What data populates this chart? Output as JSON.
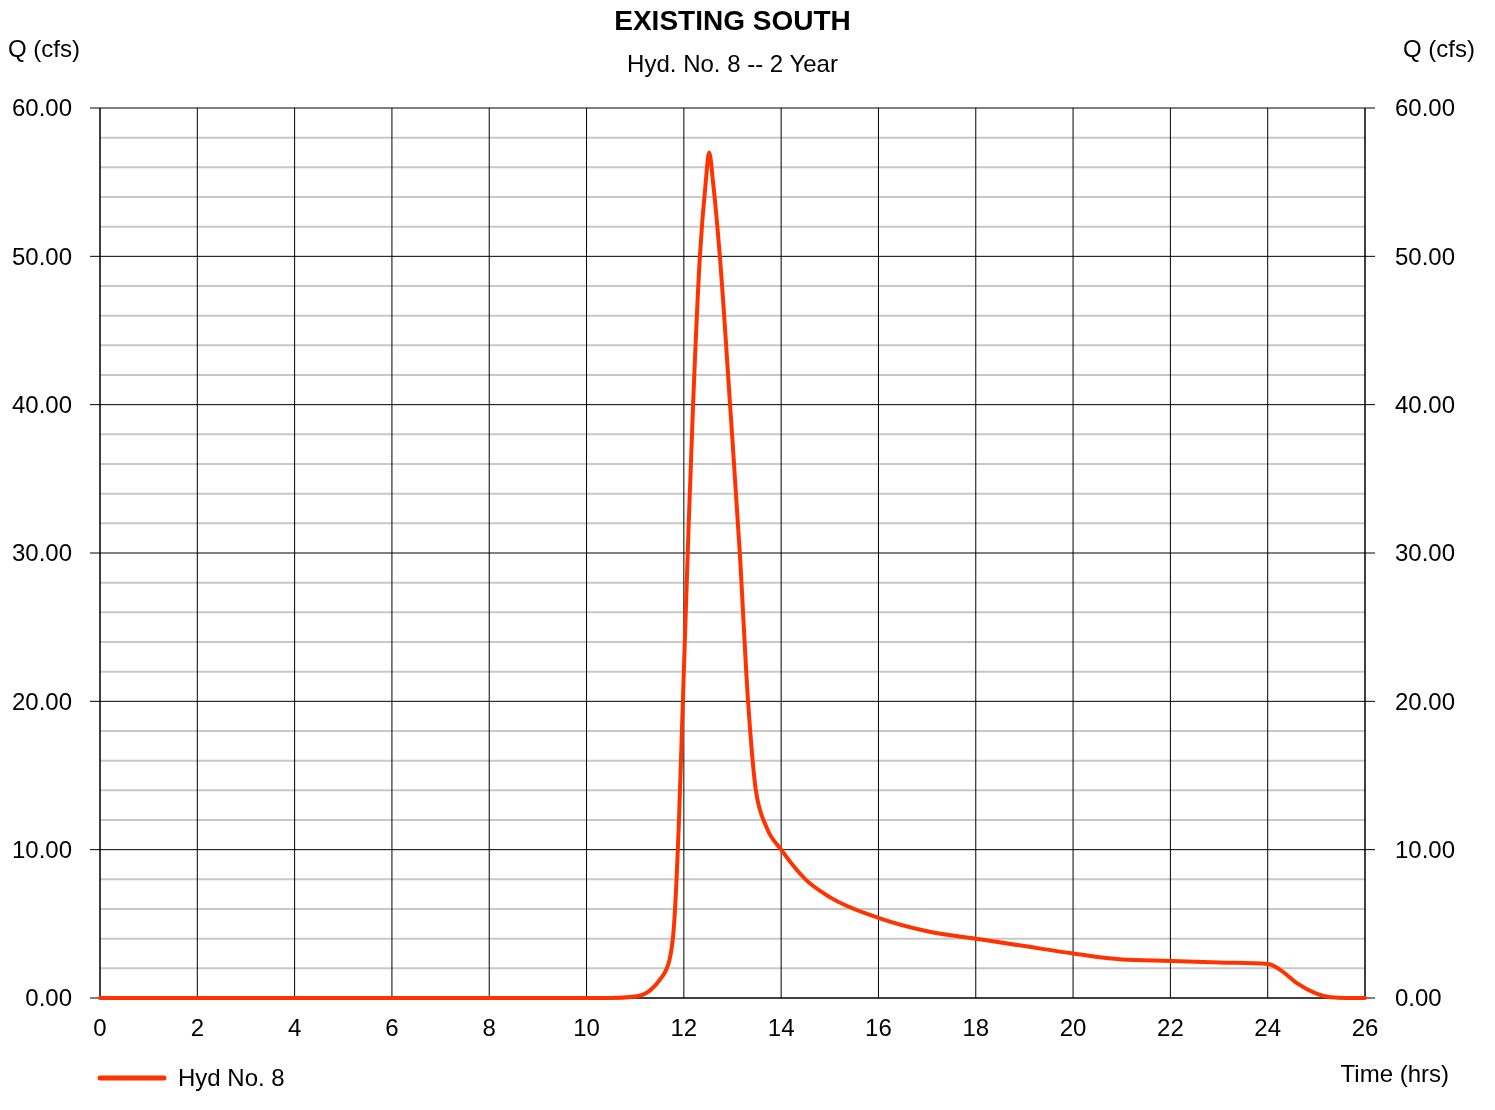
{
  "chart_data": {
    "type": "line",
    "title": "EXISTING SOUTH",
    "subtitle": "Hyd. No. 8 -- 2 Year",
    "ylabel": "Q (cfs)",
    "y2label": "Q (cfs)",
    "xlabel": "Time (hrs)",
    "xlim": [
      0,
      26
    ],
    "xticks": [
      0,
      2,
      4,
      6,
      8,
      10,
      12,
      14,
      16,
      18,
      20,
      22,
      24,
      26
    ],
    "ylim": [
      0,
      60
    ],
    "yticks": [
      {
        "value": 0,
        "label": "0.00"
      },
      {
        "value": 10,
        "label": "10.00"
      },
      {
        "value": 20,
        "label": "20.00"
      },
      {
        "value": 30,
        "label": "30.00"
      },
      {
        "value": 40,
        "label": "40.00"
      },
      {
        "value": 50,
        "label": "50.00"
      },
      {
        "value": 60,
        "label": "60.00"
      }
    ],
    "y2lim": [
      0,
      60
    ],
    "y2ticks": [
      {
        "value": 0,
        "label": "0.00"
      },
      {
        "value": 10,
        "label": "10.00"
      },
      {
        "value": 20,
        "label": "20.00"
      },
      {
        "value": 30,
        "label": "30.00"
      },
      {
        "value": 40,
        "label": "40.00"
      },
      {
        "value": 50,
        "label": "50.00"
      },
      {
        "value": 60,
        "label": "60.00"
      }
    ],
    "grid": true,
    "legend": "bottom left",
    "marker": "none",
    "line_style": "solid",
    "series": [
      {
        "name": "Hyd No. 8",
        "color": "#ff3300",
        "x": [
          0,
          10.5,
          11,
          11.3,
          11.5,
          11.7,
          11.8,
          11.9,
          11.98,
          12.1,
          12.19,
          12.33,
          12.45,
          12.52,
          12.6,
          12.74,
          12.95,
          13.15,
          13.32,
          13.48,
          13.7,
          14,
          14.5,
          15,
          16,
          17,
          18,
          19,
          20,
          21,
          22,
          23,
          24,
          24.3,
          24.6,
          25,
          25.3,
          25.6,
          26
        ],
        "values": [
          0,
          0,
          0.1,
          0.5,
          1.2,
          2.5,
          5,
          12,
          20,
          32,
          40,
          50,
          55,
          57,
          55,
          50,
          40,
          30,
          20,
          14,
          11.5,
          10,
          8,
          6.8,
          5.4,
          4.5,
          4.0,
          3.5,
          3.0,
          2.6,
          2.5,
          2.4,
          2.3,
          1.8,
          1.0,
          0.3,
          0.05,
          0,
          0
        ]
      }
    ]
  }
}
